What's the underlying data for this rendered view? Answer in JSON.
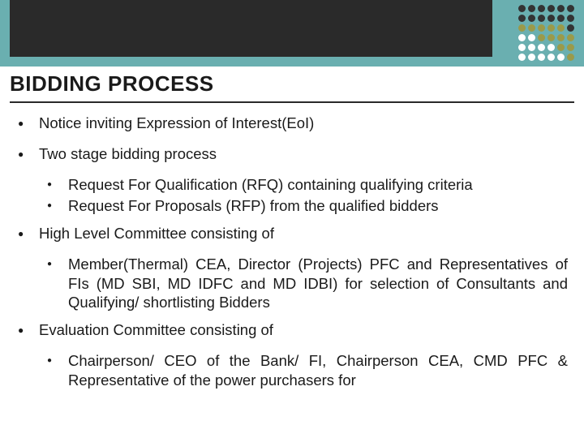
{
  "colors": {
    "teal": "#6aafb0",
    "dark": "#2a2a2a",
    "text": "#1a1a1a",
    "dot_dark": "#333333",
    "dot_olive": "#9a9a4a",
    "dot_white": "#ffffff"
  },
  "decor": {
    "dot_grid": {
      "rows": 6,
      "cols": 6,
      "pattern": [
        [
          "dark",
          "dark",
          "dark",
          "dark",
          "dark",
          "dark"
        ],
        [
          "dark",
          "dark",
          "dark",
          "dark",
          "dark",
          "dark"
        ],
        [
          "olive",
          "olive",
          "olive",
          "olive",
          "olive",
          "dark"
        ],
        [
          "white",
          "white",
          "olive",
          "olive",
          "olive",
          "olive"
        ],
        [
          "white",
          "white",
          "white",
          "white",
          "olive",
          "olive"
        ],
        [
          "white",
          "white",
          "white",
          "white",
          "white",
          "olive"
        ]
      ]
    }
  },
  "title": "BIDDING PROCESS",
  "bullets": [
    {
      "text": "Notice inviting Expression of Interest(EoI)",
      "sub": []
    },
    {
      "text": "Two stage bidding process",
      "sub": [
        {
          "text": "Request For Qualification (RFQ) containing qualifying criteria"
        },
        {
          "text": "Request For Proposals (RFP) from the qualified bidders"
        }
      ]
    },
    {
      "text": "High Level Committee consisting of",
      "sub": [
        {
          "text": "Member(Thermal) CEA, Director (Projects) PFC and Representatives of FIs (MD SBI, MD IDFC and MD IDBI) for selection of Consultants and Qualifying/ shortlisting Bidders"
        }
      ]
    },
    {
      "text": "Evaluation Committee consisting of",
      "sub": [
        {
          "text": "Chairperson/ CEO of the Bank/ FI, Chairperson CEA, CMD PFC & Representative of the power purchasers for"
        }
      ]
    }
  ]
}
